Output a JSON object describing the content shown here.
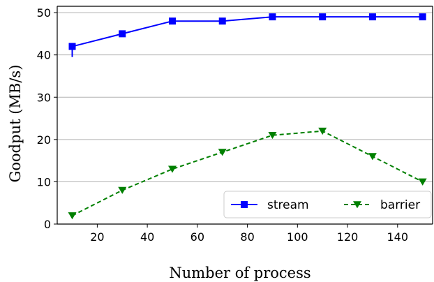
{
  "chart_data": {
    "type": "line",
    "title": "",
    "xlabel": "Number of process",
    "ylabel": "Goodput (MB/s)",
    "xlim": [
      4,
      154
    ],
    "ylim": [
      0,
      51.5
    ],
    "xticks": [
      20,
      40,
      60,
      80,
      100,
      120,
      140
    ],
    "yticks": [
      0,
      10,
      20,
      30,
      40,
      50
    ],
    "grid": "horizontal",
    "legend": {
      "placement": "lower-right",
      "columns": 2
    },
    "series": [
      {
        "name": "stream",
        "color": "#0000ff",
        "line_style": "solid",
        "marker": "square",
        "x": [
          10,
          30,
          50,
          70,
          90,
          110,
          130,
          150
        ],
        "y": [
          42,
          45,
          48,
          48,
          49,
          49,
          49,
          49
        ],
        "error_low": [
          2.5,
          0.5,
          0,
          0,
          0,
          0,
          0,
          0
        ],
        "error_high": [
          0.5,
          0.5,
          0,
          0,
          0,
          0,
          0,
          0
        ]
      },
      {
        "name": "barrier",
        "color": "#008000",
        "line_style": "dashed",
        "marker": "triangle-down",
        "x": [
          10,
          30,
          50,
          70,
          90,
          110,
          130,
          150
        ],
        "y": [
          2,
          8,
          13,
          17,
          21,
          22,
          16,
          10
        ]
      }
    ]
  }
}
